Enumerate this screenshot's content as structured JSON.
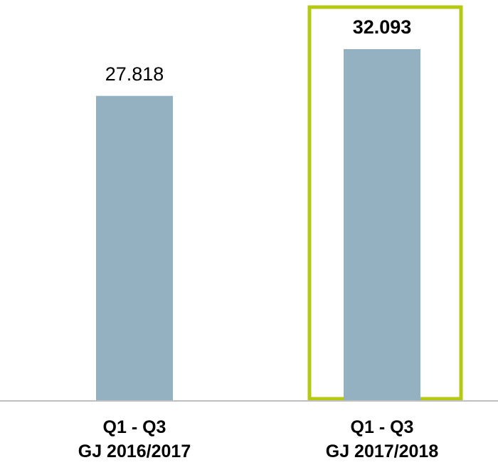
{
  "chart_data": {
    "type": "bar",
    "categories": [
      "Q1 - Q3\nGJ 2016/2017",
      "Q1 - Q3\nGJ 2017/2018"
    ],
    "values": [
      27.818,
      32.093
    ],
    "color": "#93b1c0",
    "highlight": 1,
    "highlight_color": "#b5c912"
  }
}
